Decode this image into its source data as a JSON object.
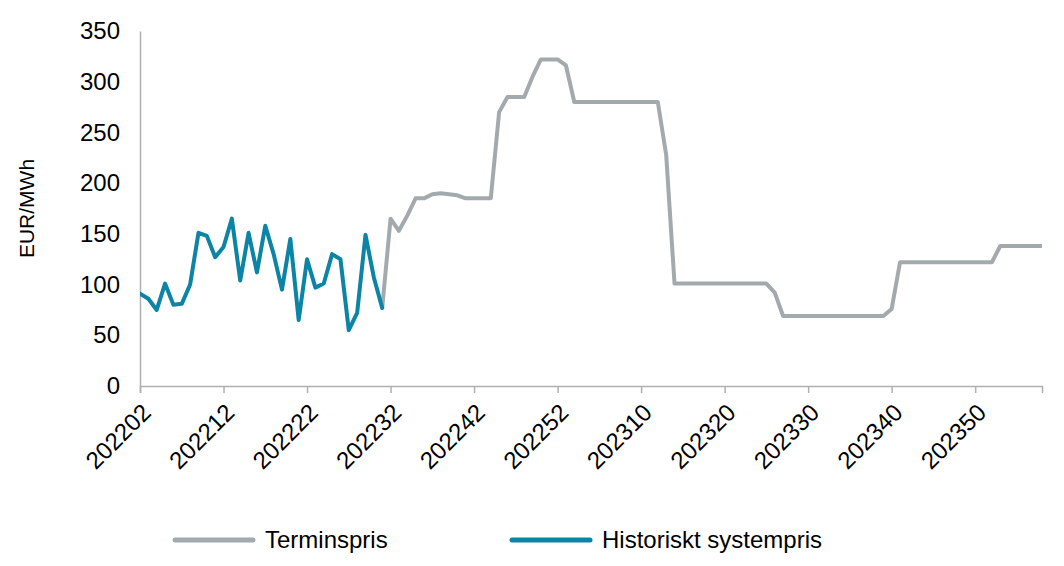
{
  "chart_data": {
    "type": "line",
    "y_label": "EUR/MWh",
    "categories": [
      "202202",
      null,
      null,
      null,
      null,
      null,
      null,
      null,
      null,
      null,
      "202212",
      null,
      null,
      null,
      null,
      null,
      null,
      null,
      null,
      null,
      "202222",
      null,
      null,
      null,
      null,
      null,
      null,
      null,
      null,
      null,
      "202232",
      null,
      null,
      null,
      null,
      null,
      null,
      null,
      null,
      null,
      "202242",
      null,
      null,
      null,
      null,
      null,
      null,
      null,
      null,
      null,
      "202252",
      null,
      null,
      null,
      null,
      null,
      null,
      null,
      null,
      null,
      "202310",
      null,
      null,
      null,
      null,
      null,
      null,
      null,
      null,
      null,
      "202320",
      null,
      null,
      null,
      null,
      null,
      null,
      null,
      null,
      null,
      "202330",
      null,
      null,
      null,
      null,
      null,
      null,
      null,
      null,
      null,
      "202340",
      null,
      null,
      null,
      null,
      null,
      null,
      null,
      null,
      null,
      "202350",
      null,
      null,
      null,
      null,
      null,
      null,
      null,
      null
    ],
    "series": [
      {
        "name": "Terminspris",
        "color": "#a3aaae",
        "values": [
          null,
          null,
          null,
          null,
          null,
          null,
          null,
          null,
          null,
          null,
          null,
          null,
          null,
          null,
          null,
          null,
          null,
          null,
          null,
          null,
          null,
          null,
          null,
          null,
          null,
          null,
          null,
          null,
          null,
          77,
          165,
          153,
          168,
          185,
          185,
          189,
          190,
          189,
          188,
          185,
          185,
          185,
          185,
          270,
          285,
          285,
          285,
          305,
          322,
          322,
          322,
          316,
          280,
          280,
          280,
          280,
          280,
          280,
          280,
          280,
          280,
          280,
          280,
          228,
          101,
          101,
          101,
          101,
          101,
          101,
          101,
          101,
          101,
          101,
          101,
          101,
          92,
          69,
          69,
          69,
          69,
          69,
          69,
          69,
          69,
          69,
          69,
          69,
          69,
          69,
          76,
          122,
          122,
          122,
          122,
          122,
          122,
          122,
          122,
          122,
          122,
          122,
          122,
          138,
          138,
          138,
          138,
          138,
          138
        ]
      },
      {
        "name": "Historiskt systempris",
        "color": "#0b84a5",
        "values": [
          91,
          86,
          75,
          101,
          80,
          81,
          100,
          151,
          148,
          127,
          137,
          165,
          104,
          151,
          112,
          158,
          130,
          95,
          145,
          65,
          125,
          97,
          101,
          130,
          125,
          55,
          72,
          149,
          107,
          77,
          null,
          null,
          null,
          null,
          null,
          null,
          null,
          null,
          null,
          null,
          null,
          null,
          null,
          null,
          null,
          null,
          null,
          null,
          null,
          null,
          null,
          null,
          null,
          null,
          null,
          null,
          null,
          null,
          null,
          null,
          null,
          null,
          null,
          null,
          null,
          null,
          null,
          null,
          null,
          null,
          null,
          null,
          null,
          null,
          null,
          null,
          null,
          null,
          null,
          null,
          null,
          null,
          null,
          null,
          null,
          null,
          null,
          null,
          null,
          null,
          null,
          null,
          null,
          null,
          null,
          null,
          null,
          null,
          null,
          null,
          null,
          null,
          null,
          null,
          null,
          null,
          null,
          null,
          null
        ]
      }
    ],
    "ylim": [
      0,
      350
    ],
    "yticks": [
      0,
      50,
      100,
      150,
      200,
      250,
      300,
      350
    ],
    "grid": false,
    "legend": "bottom"
  }
}
